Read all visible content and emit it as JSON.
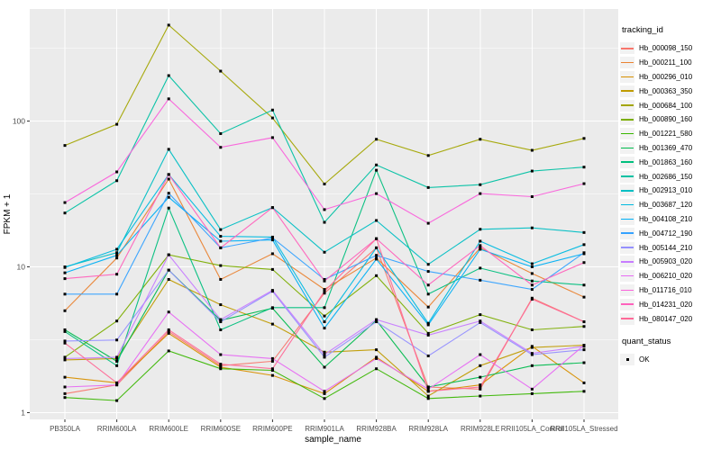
{
  "chart_data": {
    "type": "line",
    "title": "",
    "xlabel": "sample_name",
    "ylabel": "FPKM + 1",
    "y_scale": "log10",
    "y_ticks": [
      1,
      10,
      100
    ],
    "y_minor_ticks": [
      3.162,
      31.62,
      316.2
    ],
    "ylim": [
      0.9,
      590
    ],
    "grid": "on",
    "legend_position": "right",
    "categories": [
      "PB350LA",
      "RRIM600LA",
      "RRIM600LE",
      "RRIM600SE",
      "RRIM600PE",
      "RRIM901LA",
      "RRIM928BA",
      "RRIM928LA",
      "RRIM928LE",
      "RRII105LA_Control",
      "RRII105LA_Stressed"
    ],
    "series": [
      {
        "name": "Hb_000098_150",
        "color": "#F8766D",
        "values": [
          1.35,
          1.55,
          3.6,
          2.1,
          2.25,
          6.6,
          13.5,
          1.5,
          1.45,
          6.1,
          4.2
        ]
      },
      {
        "name": "Hb_000211_100",
        "color": "#EA8331",
        "values": [
          5.0,
          11.5,
          40.0,
          8.2,
          12.3,
          7.0,
          11.5,
          5.3,
          13.5,
          9.0,
          6.2
        ]
      },
      {
        "name": "Hb_000296_010",
        "color": "#D89000",
        "values": [
          1.75,
          1.6,
          3.5,
          2.05,
          1.8,
          1.35,
          2.4,
          1.4,
          1.55,
          2.85,
          1.6
        ]
      },
      {
        "name": "Hb_000363_350",
        "color": "#C09B00",
        "values": [
          2.3,
          2.35,
          8.2,
          5.5,
          4.05,
          2.6,
          2.7,
          1.3,
          2.1,
          2.8,
          2.9
        ]
      },
      {
        "name": "Hb_000684_100",
        "color": "#A3A500",
        "values": [
          68,
          95,
          455,
          220,
          105,
          37,
          75,
          58,
          75,
          63,
          76
        ]
      },
      {
        "name": "Hb_000890_160",
        "color": "#7CAE00",
        "values": [
          2.4,
          4.25,
          12.1,
          10.2,
          9.6,
          4.6,
          8.7,
          3.5,
          4.7,
          3.7,
          3.9
        ]
      },
      {
        "name": "Hb_001221_580",
        "color": "#39B600",
        "values": [
          1.27,
          1.21,
          2.65,
          2.0,
          1.95,
          1.25,
          2.0,
          1.25,
          1.3,
          1.35,
          1.4
        ]
      },
      {
        "name": "Hb_001369_470",
        "color": "#00BB4E",
        "values": [
          3.7,
          2.25,
          9.5,
          4.3,
          5.2,
          2.05,
          4.3,
          1.5,
          1.75,
          2.1,
          2.2
        ]
      },
      {
        "name": "Hb_001863_160",
        "color": "#00BF7D",
        "values": [
          3.6,
          2.1,
          25.3,
          3.7,
          5.25,
          5.25,
          46,
          6.5,
          9.8,
          8.0,
          7.5
        ]
      },
      {
        "name": "Hb_002686_150",
        "color": "#00C1A3",
        "values": [
          23.4,
          39,
          205,
          82,
          119,
          20.2,
          50,
          35,
          36.6,
          45.4,
          48.3
        ]
      },
      {
        "name": "Hb_002913_010",
        "color": "#00BFC4",
        "values": [
          10.0,
          12.5,
          64,
          18.0,
          25.5,
          12.6,
          20.8,
          10.4,
          18.1,
          18.5,
          17.2
        ]
      },
      {
        "name": "Hb_003687_120",
        "color": "#00BAE0",
        "values": [
          9.9,
          13.2,
          43,
          16.2,
          16.0,
          4.2,
          13.5,
          4.1,
          15.0,
          10.5,
          14.2
        ]
      },
      {
        "name": "Hb_004108_210",
        "color": "#00B0F6",
        "values": [
          9.1,
          12.0,
          30,
          15.0,
          15.3,
          3.8,
          11.3,
          4.0,
          13.2,
          10.0,
          12.3
        ]
      },
      {
        "name": "Hb_004712_190",
        "color": "#35A2FF",
        "values": [
          6.5,
          6.5,
          32,
          13.5,
          15.8,
          8.2,
          12.0,
          9.3,
          8.1,
          7.0,
          12.5
        ]
      },
      {
        "name": "Hb_005144_210",
        "color": "#9590FF",
        "values": [
          3.1,
          3.15,
          9.5,
          4.2,
          6.8,
          2.4,
          4.2,
          2.45,
          4.15,
          2.5,
          2.7
        ]
      },
      {
        "name": "Hb_005903_020",
        "color": "#C77CFF",
        "values": [
          2.35,
          2.4,
          12.1,
          4.35,
          6.9,
          2.5,
          4.35,
          3.4,
          4.25,
          2.55,
          2.85
        ]
      },
      {
        "name": "Hb_006210_020",
        "color": "#E76BF3",
        "values": [
          1.5,
          1.55,
          4.9,
          2.5,
          2.35,
          1.4,
          2.35,
          1.45,
          2.5,
          1.45,
          2.9
        ]
      },
      {
        "name": "Hb_011716_010",
        "color": "#FA62DB",
        "values": [
          27.6,
          44.8,
          142,
          66,
          77,
          24.7,
          31.8,
          19.9,
          31.8,
          30.3,
          37.2
        ]
      },
      {
        "name": "Hb_014231_020",
        "color": "#FF62BC",
        "values": [
          8.3,
          8.9,
          43,
          13.5,
          25.5,
          8.0,
          15.6,
          7.5,
          14.0,
          7.5,
          10.7
        ]
      },
      {
        "name": "Hb_080147_020",
        "color": "#FF6A98",
        "values": [
          3.0,
          1.6,
          3.7,
          2.15,
          2.0,
          6.8,
          15.6,
          1.4,
          1.5,
          6.0,
          4.2
        ]
      }
    ],
    "legend": {
      "tracking_title": "tracking_id",
      "quant_title": "quant_status",
      "quant_items": [
        {
          "label": "OK",
          "marker": "black-square"
        }
      ]
    },
    "marker": {
      "shape": "square",
      "color": "#000000"
    }
  },
  "style_colors": {
    "panel_bg": "#EBEBEB",
    "grid_major": "#FFFFFF",
    "grid_minor": "#F5F5F5",
    "tick_text": "#4D4D4D",
    "axis_title": "#000000",
    "legend_key_bg": "#F2F2F2"
  }
}
